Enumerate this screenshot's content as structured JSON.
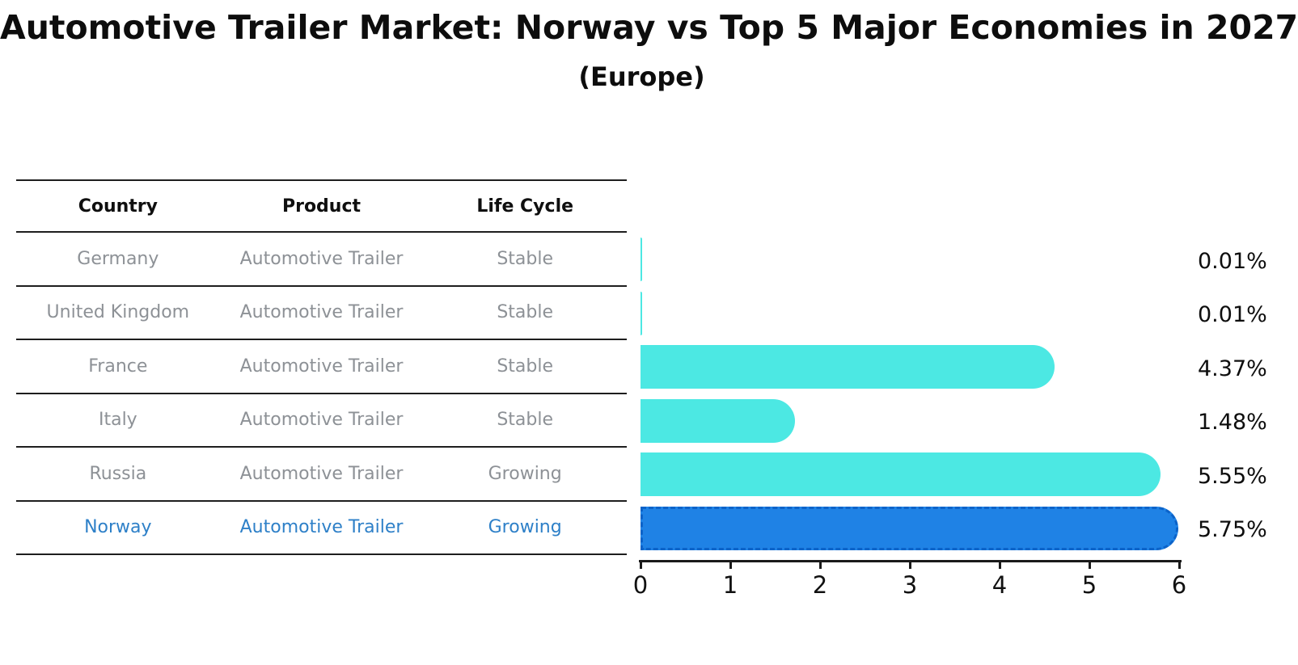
{
  "title": "Automotive Trailer Market: Norway vs Top 5 Major Economies in 2027",
  "subtitle": "(Europe)",
  "table": {
    "headers": [
      "Country",
      "Product",
      "Life Cycle"
    ],
    "rows": [
      {
        "country": "Germany",
        "product": "Automotive Trailer",
        "life_cycle": "Stable",
        "highlighted": false
      },
      {
        "country": "United Kingdom",
        "product": "Automotive Trailer",
        "life_cycle": "Stable",
        "highlighted": false
      },
      {
        "country": "France",
        "product": "Automotive Trailer",
        "life_cycle": "Stable",
        "highlighted": false
      },
      {
        "country": "Italy",
        "product": "Automotive Trailer",
        "life_cycle": "Stable",
        "highlighted": false
      },
      {
        "country": "Russia",
        "product": "Automotive Trailer",
        "life_cycle": "Growing",
        "highlighted": false
      },
      {
        "country": "Norway",
        "product": "Automotive Trailer",
        "life_cycle": "Growing",
        "highlighted": true
      }
    ]
  },
  "chart_data": {
    "type": "bar",
    "orientation": "horizontal",
    "title": "Automotive Trailer Market: Norway vs Top 5 Major Economies in 2027",
    "subtitle": "(Europe)",
    "categories": [
      "Germany",
      "United Kingdom",
      "France",
      "Italy",
      "Russia",
      "Norway"
    ],
    "values": [
      0.01,
      0.01,
      4.37,
      1.48,
      5.55,
      5.75
    ],
    "value_labels": [
      "0.01%",
      "0.01%",
      "4.37%",
      "1.48%",
      "5.55%",
      "5.75%"
    ],
    "xlim": [
      0,
      6
    ],
    "x_ticks": [
      "0",
      "1",
      "2",
      "3",
      "4",
      "5",
      "6"
    ],
    "grid": false,
    "legend": "none",
    "bar_color": "#4CE8E3",
    "highlight_bar_color": "#1F82E5",
    "highlight_index": 5
  },
  "colors": {
    "title_text": "#0d0d0d",
    "table_text": "#8d9196",
    "highlight_text": "#2e80c8",
    "line": "#1e1e1e",
    "axis_text": "#111111"
  }
}
